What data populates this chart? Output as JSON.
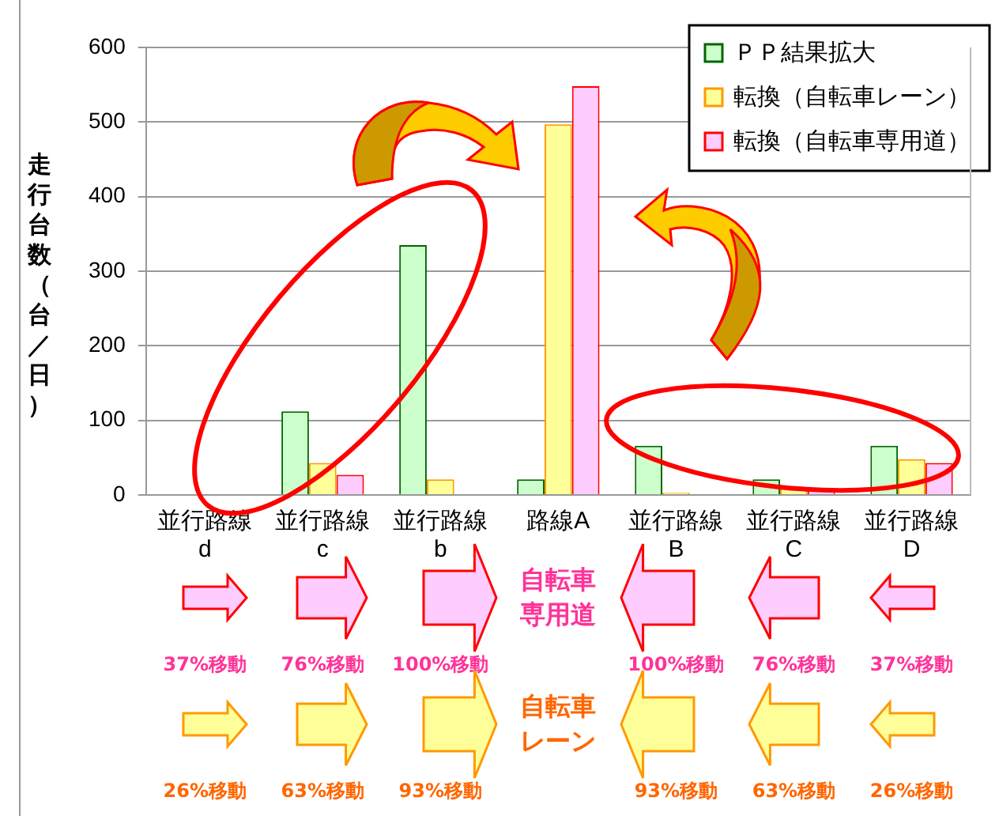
{
  "chart_data": {
    "type": "bar",
    "ylabel": "走行台数（台／日）",
    "categories": [
      "並行路線\nd",
      "並行路線\nc",
      "並行路線\nb",
      "路線A",
      "並行路線\nB",
      "並行路線\nC",
      "並行路線\nD"
    ],
    "series": [
      {
        "name": "ＰＰ結果拡大",
        "color": "#ccffcc",
        "values": [
          0,
          112,
          335,
          21,
          66,
          21,
          66
        ]
      },
      {
        "name": "転換（自転車レーン）",
        "color": "#ffff99",
        "values": [
          0,
          43,
          21,
          497,
          3,
          9,
          48
        ]
      },
      {
        "name": "転換（自転車専用道）",
        "color": "#ffccff",
        "values": [
          0,
          27,
          0,
          548,
          0,
          6,
          43
        ]
      }
    ],
    "ylim": [
      0,
      600
    ],
    "yticks": [
      0,
      100,
      200,
      300,
      400,
      500,
      600
    ],
    "grid": "y",
    "legend": "top right",
    "annotations": [
      "自転車専用道",
      "37%移動",
      "76%移動",
      "100%移動",
      "100%移動",
      "76%移動",
      "37%移動",
      "自転車レーン",
      "26%移動",
      "63%移動",
      "93%移動",
      "93%移動",
      "63%移動",
      "26%移動"
    ]
  }
}
